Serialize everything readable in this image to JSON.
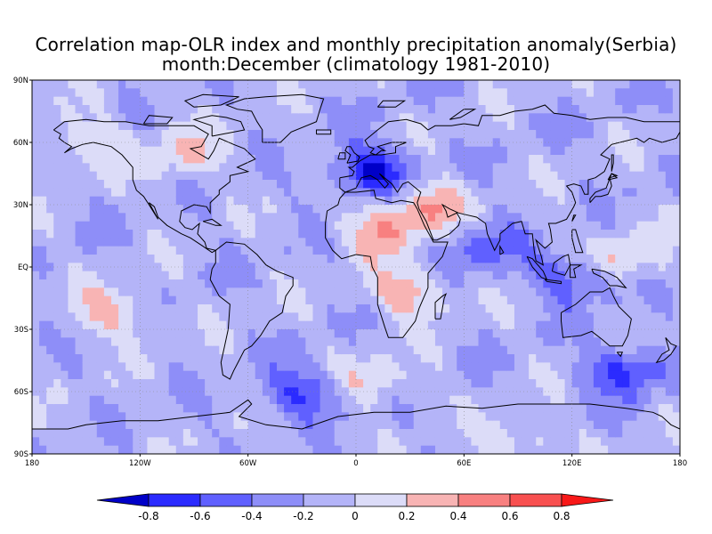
{
  "title_line1": "Correlation map-OLR index and monthly precipitation anomaly(Serbia)",
  "title_line2": "month:December (climatology 1981-2010)",
  "chart_data": {
    "type": "heatmap",
    "projection": "equirectangular",
    "lon_range": [
      -180,
      180
    ],
    "lat_range": [
      -90,
      90
    ],
    "grid": "dotted",
    "x_ticks": [
      {
        "value": -180,
        "label": "180"
      },
      {
        "value": -120,
        "label": "120W"
      },
      {
        "value": -60,
        "label": "60W"
      },
      {
        "value": 0,
        "label": "0"
      },
      {
        "value": 60,
        "label": "60E"
      },
      {
        "value": 120,
        "label": "120E"
      },
      {
        "value": 180,
        "label": "180"
      }
    ],
    "y_ticks": [
      {
        "value": 90,
        "label": "90N"
      },
      {
        "value": 60,
        "label": "60N"
      },
      {
        "value": 30,
        "label": "30N"
      },
      {
        "value": 0,
        "label": "EQ"
      },
      {
        "value": -30,
        "label": "30S"
      },
      {
        "value": -60,
        "label": "60S"
      },
      {
        "value": -90,
        "label": "90S"
      }
    ],
    "colorbar": {
      "levels": [
        -0.8,
        -0.6,
        -0.4,
        -0.2,
        0,
        0.2,
        0.4,
        0.6,
        0.8
      ],
      "labels": [
        "-0.8",
        "-0.6",
        "-0.4",
        "-0.2",
        "0",
        "0.2",
        "0.4",
        "0.6",
        "0.8"
      ],
      "colors": [
        "#0000c8",
        "#2b2bff",
        "#6060ff",
        "#8e8ef8",
        "#b4b4f8",
        "#dcdcf8",
        "#f8b4b4",
        "#f88080",
        "#f85050",
        "#f81818"
      ],
      "extend": "both"
    },
    "background_value_color": "#b4b4f8",
    "features": [
      {
        "name": "Europe minimum",
        "lon": 10,
        "lat": 46,
        "value": -0.75
      },
      {
        "name": "North Africa Arabia maximum",
        "lon": 40,
        "lat": 30,
        "value": 0.5
      },
      {
        "name": "Sahara maximum",
        "lon": 15,
        "lat": 18,
        "value": 0.45
      },
      {
        "name": "Southern Africa maximum",
        "lon": 30,
        "lat": -12,
        "value": 0.45
      },
      {
        "name": "North America maximum",
        "lon": -95,
        "lat": 55,
        "value": 0.35
      },
      {
        "name": "North Pacific maximum",
        "lon": -150,
        "lat": 60,
        "value": 0.3
      },
      {
        "name": "South Pacific maximum",
        "lon": -135,
        "lat": -22,
        "value": 0.4
      },
      {
        "name": "Indian Ocean minimum",
        "lon": 70,
        "lat": 10,
        "value": -0.4
      },
      {
        "name": "Maritime Continent minimum",
        "lon": 120,
        "lat": -5,
        "value": -0.45
      },
      {
        "name": "Australia minimum",
        "lon": 150,
        "lat": -50,
        "value": -0.55
      },
      {
        "name": "Southern Ocean minimum",
        "lon": -30,
        "lat": -60,
        "value": -0.5
      },
      {
        "name": "South Atlantic maximum",
        "lon": 10,
        "lat": -55,
        "value": 0.3
      },
      {
        "name": "Western Pacific maximum",
        "lon": 150,
        "lat": 5,
        "value": 0.35
      },
      {
        "name": "Antarctic maximum",
        "lon": 90,
        "lat": -85,
        "value": 0.3
      }
    ]
  }
}
